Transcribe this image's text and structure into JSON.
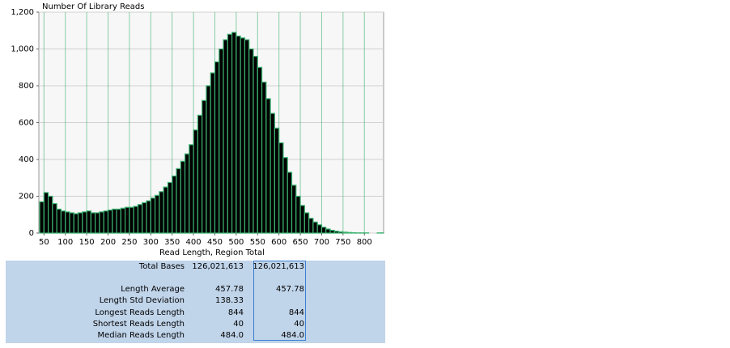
{
  "chart_data": {
    "type": "histogram",
    "y_label": "Number Of Library Reads",
    "x_label": "Read Length, Region Total",
    "bins": [
      40,
      50,
      60,
      70,
      80,
      90,
      100,
      110,
      120,
      130,
      140,
      150,
      160,
      170,
      180,
      190,
      200,
      210,
      220,
      230,
      240,
      250,
      260,
      270,
      280,
      290,
      300,
      310,
      320,
      330,
      340,
      350,
      360,
      370,
      380,
      390,
      400,
      410,
      420,
      430,
      440,
      450,
      460,
      470,
      480,
      490,
      500,
      510,
      520,
      530,
      540,
      550,
      560,
      570,
      580,
      590,
      600,
      610,
      620,
      630,
      640,
      650,
      660,
      670,
      680,
      690,
      700,
      710,
      720,
      730,
      740,
      750,
      760,
      770,
      780,
      790,
      800,
      810,
      820,
      830,
      840,
      850
    ],
    "values": [
      170,
      220,
      200,
      160,
      130,
      120,
      115,
      110,
      105,
      110,
      115,
      120,
      110,
      110,
      115,
      120,
      125,
      130,
      130,
      135,
      140,
      140,
      145,
      155,
      165,
      175,
      190,
      205,
      225,
      250,
      275,
      310,
      350,
      390,
      430,
      480,
      560,
      640,
      720,
      800,
      870,
      930,
      1000,
      1050,
      1080,
      1090,
      1070,
      1060,
      1050,
      1000,
      960,
      900,
      820,
      730,
      650,
      570,
      490,
      410,
      330,
      260,
      200,
      150,
      110,
      80,
      60,
      45,
      32,
      22,
      15,
      10,
      7,
      5,
      3,
      2,
      1,
      1,
      1,
      0,
      0,
      1,
      1
    ],
    "color": "#000000",
    "edge_color": "#3cb371",
    "xlim": [
      38,
      845
    ],
    "xticks": [
      50,
      100,
      150,
      200,
      250,
      300,
      350,
      400,
      450,
      500,
      550,
      600,
      650,
      700,
      750,
      800
    ],
    "ylim": [
      0,
      1200
    ],
    "yticks": [
      0,
      200,
      400,
      600,
      800,
      {
        "value": 1000,
        "label": "1,000"
      },
      {
        "value": 1200,
        "label": "1,200"
      }
    ],
    "grid": true
  },
  "table": {
    "rows": [
      {
        "label": "Total Bases",
        "values": [
          "126,021,613",
          "126,021,613"
        ]
      },
      {
        "label": "Length Average",
        "values": [
          "457.78",
          "457.78"
        ]
      },
      {
        "label": "Length Std Deviation",
        "values": [
          "138.33"
        ]
      },
      {
        "label": "Longest Reads Length",
        "values": [
          "844",
          "844"
        ]
      },
      {
        "label": "Shortest Reads Length",
        "values": [
          "40",
          "40"
        ]
      },
      {
        "label": "Median Reads Length",
        "values": [
          "484.0",
          "484.0"
        ]
      }
    ]
  }
}
